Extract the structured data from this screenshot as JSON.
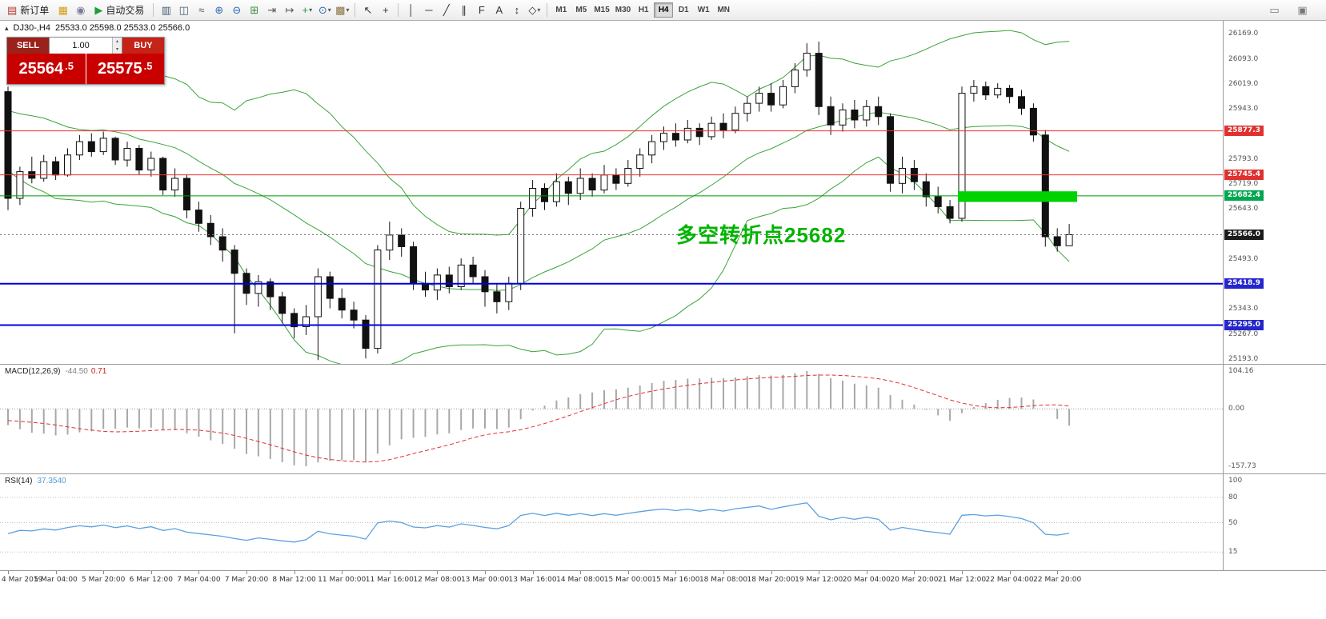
{
  "toolbar": {
    "items": [
      {
        "type": "button",
        "name": "new-order",
        "glyph": "▤",
        "color": "#b03a2e",
        "label": "新订单"
      },
      {
        "type": "icon",
        "name": "new-chart",
        "glyph": "▦",
        "color": "#d4a017"
      },
      {
        "type": "icon",
        "name": "chart-replay",
        "glyph": "◉",
        "color": "#7a7a9a"
      },
      {
        "type": "button",
        "name": "auto-trading",
        "glyph": "▶",
        "color": "#1e9e3e",
        "label": "自动交易"
      },
      {
        "type": "sep"
      },
      {
        "type": "icon",
        "name": "bar-chart-mode",
        "glyph": "▥",
        "color": "#445a6f"
      },
      {
        "type": "icon",
        "name": "candlestick-mode",
        "glyph": "◫",
        "color": "#445a6f"
      },
      {
        "type": "icon",
        "name": "line-chart-mode",
        "glyph": "≈",
        "color": "#445a6f"
      },
      {
        "type": "icon",
        "name": "zoom-in",
        "glyph": "⊕",
        "color": "#2e6db4"
      },
      {
        "type": "icon",
        "name": "zoom-out",
        "glyph": "⊖",
        "color": "#2e6db4"
      },
      {
        "type": "icon",
        "name": "tile-windows",
        "glyph": "⊞",
        "color": "#3a8f3a"
      },
      {
        "type": "icon",
        "name": "auto-scroll",
        "glyph": "⇥",
        "color": "#555555"
      },
      {
        "type": "icon",
        "name": "chart-shift",
        "glyph": "↦",
        "color": "#555555"
      },
      {
        "type": "icon",
        "name": "indicators",
        "glyph": "+",
        "color": "#1e9e3e",
        "dropdown": true
      },
      {
        "type": "icon",
        "name": "periods",
        "glyph": "⊙",
        "color": "#2e6db4",
        "dropdown": true
      },
      {
        "type": "icon",
        "name": "templates",
        "glyph": "▩",
        "color": "#8a7340",
        "dropdown": true
      },
      {
        "type": "sep"
      },
      {
        "type": "icon",
        "name": "cursor",
        "glyph": "↖",
        "color": "#333333"
      },
      {
        "type": "icon",
        "name": "crosshair",
        "glyph": "+",
        "color": "#333333"
      },
      {
        "type": "sep"
      },
      {
        "type": "icon",
        "name": "vertical-line-tool",
        "glyph": "│",
        "color": "#333333"
      },
      {
        "type": "icon",
        "name": "horizontal-line-tool",
        "glyph": "─",
        "color": "#333333"
      },
      {
        "type": "icon",
        "name": "trendline-tool",
        "glyph": "╱",
        "color": "#333333"
      },
      {
        "type": "icon",
        "name": "channel-tool",
        "glyph": "∥",
        "color": "#333333"
      },
      {
        "type": "icon",
        "name": "fibonacci-tool",
        "glyph": "F",
        "color": "#333333"
      },
      {
        "type": "icon",
        "name": "text-tool",
        "glyph": "A",
        "color": "#333333"
      },
      {
        "type": "icon",
        "name": "arrows-tool",
        "glyph": "↕",
        "color": "#333333"
      },
      {
        "type": "icon",
        "name": "shapes-tool",
        "glyph": "◇",
        "color": "#333333",
        "dropdown": true
      }
    ],
    "timeframes": [
      "M1",
      "M5",
      "M15",
      "M30",
      "H1",
      "H4",
      "D1",
      "W1",
      "MN"
    ],
    "active_timeframe": "H4",
    "right_items": [
      {
        "name": "chart-window",
        "glyph": "▭",
        "color": "#777777"
      },
      {
        "name": "quick-tools",
        "glyph": "▣",
        "color": "#777777"
      }
    ]
  },
  "chart": {
    "title": {
      "symbol_tf": "DJ30-,H4",
      "ohlc": "25533.0 25598.0 25533.0 25566.0"
    },
    "trade_panel": {
      "sell_label": "SELL",
      "buy_label": "BUY",
      "volume": "1.00",
      "sell_price": "25564",
      "sell_frac": ".5",
      "buy_price": "25575",
      "buy_frac": ".5"
    },
    "annotation": {
      "text": "多空转折点25682",
      "color": "#00b400"
    }
  },
  "chart_data": {
    "type": "candlestick",
    "symbol": "DJ30-",
    "timeframe": "H4",
    "last_ohlc": {
      "open": 25533.0,
      "high": 25598.0,
      "low": 25533.0,
      "close": 25566.0
    },
    "price_axis_labels": [
      "26169.0",
      "26093.0",
      "26019.0",
      "25943.0",
      "25867.0",
      "25793.0",
      "25719.0",
      "25643.0",
      "25567.0",
      "25493.0",
      "25417.0",
      "25343.0",
      "25267.0",
      "25193.0"
    ],
    "price_badges": [
      {
        "text": "25877.3",
        "price": 25877.3,
        "bg": "#e03131"
      },
      {
        "text": "25745.4",
        "price": 25745.4,
        "bg": "#e03131"
      },
      {
        "text": "25682.4",
        "price": 25682.4,
        "bg": "#00a651"
      },
      {
        "text": "25566.0",
        "price": 25566.0,
        "bg": "#1b1b1b"
      },
      {
        "text": "25418.9",
        "price": 25418.9,
        "bg": "#2525cc"
      },
      {
        "text": "25295.0",
        "price": 25295.0,
        "bg": "#2525cc"
      }
    ],
    "levels": [
      {
        "price": 25877.3,
        "color": "#f03030",
        "width": 1
      },
      {
        "price": 25745.4,
        "color": "#f03030",
        "width": 1
      },
      {
        "price": 25682.4,
        "color": "#009900",
        "width": 1
      },
      {
        "price": 25418.9,
        "color": "#0000e0",
        "width": 2
      },
      {
        "price": 25295.0,
        "color": "#0000e0",
        "width": 2
      }
    ],
    "current_price": 25566.0,
    "rect_highlight": {
      "from_index": 80,
      "to_index": 90,
      "price_top": 25696,
      "price_bottom": 25664,
      "color": "#00d200"
    },
    "time_labels": [
      "4 Mar 2019",
      "5 Mar 04:00",
      "5 Mar 20:00",
      "6 Mar 12:00",
      "7 Mar 04:00",
      "7 Mar 20:00",
      "8 Mar 12:00",
      "11 Mar 00:00",
      "11 Mar 16:00",
      "12 Mar 08:00",
      "13 Mar 00:00",
      "13 Mar 16:00",
      "14 Mar 08:00",
      "15 Mar 00:00",
      "15 Mar 16:00",
      "18 Mar 08:00",
      "18 Mar 20:00",
      "19 Mar 12:00",
      "20 Mar 04:00",
      "20 Mar 20:00",
      "21 Mar 12:00",
      "22 Mar 04:00",
      "22 Mar 20:00"
    ],
    "prehistory_closes": [
      26100,
      26040,
      25950,
      26020,
      26110,
      26050,
      25940,
      25860,
      25920,
      26010,
      26080,
      25990,
      25880,
      25820,
      25900,
      25980,
      26040,
      25950,
      25870,
      25930,
      25990,
      26060,
      25970,
      25900,
      25995
    ],
    "candles": [
      [
        25995,
        26010,
        25640,
        25675
      ],
      [
        25675,
        25770,
        25655,
        25755
      ],
      [
        25755,
        25800,
        25720,
        25735
      ],
      [
        25735,
        25805,
        25725,
        25785
      ],
      [
        25785,
        25800,
        25730,
        25745
      ],
      [
        25745,
        25825,
        25740,
        25805
      ],
      [
        25805,
        25865,
        25790,
        25845
      ],
      [
        25845,
        25870,
        25800,
        25815
      ],
      [
        25815,
        25875,
        25805,
        25855
      ],
      [
        25855,
        25860,
        25775,
        25790
      ],
      [
        25790,
        25845,
        25770,
        25825
      ],
      [
        25825,
        25835,
        25745,
        25760
      ],
      [
        25760,
        25815,
        25740,
        25795
      ],
      [
        25795,
        25800,
        25685,
        25700
      ],
      [
        25700,
        25765,
        25680,
        25735
      ],
      [
        25735,
        25745,
        25615,
        25640
      ],
      [
        25640,
        25665,
        25575,
        25600
      ],
      [
        25600,
        25625,
        25535,
        25560
      ],
      [
        25560,
        25585,
        25485,
        25520
      ],
      [
        25520,
        25535,
        25270,
        25450
      ],
      [
        25450,
        25465,
        25355,
        25390
      ],
      [
        25390,
        25445,
        25350,
        25425
      ],
      [
        25425,
        25435,
        25340,
        25380
      ],
      [
        25380,
        25395,
        25300,
        25330
      ],
      [
        25330,
        25345,
        25255,
        25290
      ],
      [
        25290,
        25355,
        25265,
        25320
      ],
      [
        25320,
        25465,
        25190,
        25440
      ],
      [
        25440,
        25455,
        25345,
        25375
      ],
      [
        25375,
        25405,
        25315,
        25340
      ],
      [
        25340,
        25365,
        25285,
        25310
      ],
      [
        25310,
        25325,
        25195,
        25225
      ],
      [
        25225,
        25535,
        25210,
        25520
      ],
      [
        25520,
        25605,
        25490,
        25565
      ],
      [
        25565,
        25585,
        25500,
        25530
      ],
      [
        25530,
        25545,
        25400,
        25420
      ],
      [
        25420,
        25455,
        25380,
        25400
      ],
      [
        25400,
        25465,
        25370,
        25445
      ],
      [
        25445,
        25470,
        25390,
        25410
      ],
      [
        25410,
        25495,
        25400,
        25475
      ],
      [
        25475,
        25500,
        25420,
        25440
      ],
      [
        25440,
        25460,
        25350,
        25395
      ],
      [
        25395,
        25420,
        25330,
        25365
      ],
      [
        25365,
        25440,
        25340,
        25420
      ],
      [
        25420,
        25665,
        25400,
        25645
      ],
      [
        25645,
        25730,
        25620,
        25705
      ],
      [
        25705,
        25720,
        25640,
        25665
      ],
      [
        25665,
        25750,
        25650,
        25725
      ],
      [
        25725,
        25740,
        25655,
        25690
      ],
      [
        25690,
        25765,
        25670,
        25735
      ],
      [
        25735,
        25750,
        25680,
        25700
      ],
      [
        25700,
        25775,
        25690,
        25745
      ],
      [
        25745,
        25765,
        25700,
        25720
      ],
      [
        25720,
        25790,
        25710,
        25765
      ],
      [
        25765,
        25825,
        25740,
        25805
      ],
      [
        25805,
        25865,
        25780,
        25845
      ],
      [
        25845,
        25890,
        25820,
        25870
      ],
      [
        25870,
        25900,
        25830,
        25850
      ],
      [
        25850,
        25910,
        25840,
        25885
      ],
      [
        25885,
        25900,
        25835,
        25860
      ],
      [
        25860,
        25920,
        25850,
        25900
      ],
      [
        25900,
        25930,
        25855,
        25880
      ],
      [
        25880,
        25950,
        25870,
        25930
      ],
      [
        25930,
        25980,
        25905,
        25960
      ],
      [
        25960,
        26010,
        25935,
        25990
      ],
      [
        25990,
        26020,
        25935,
        25955
      ],
      [
        25955,
        26030,
        25945,
        26010
      ],
      [
        26010,
        26080,
        25990,
        26060
      ],
      [
        26060,
        26140,
        26040,
        26110
      ],
      [
        26110,
        26145,
        25925,
        25950
      ],
      [
        25950,
        25980,
        25865,
        25895
      ],
      [
        25895,
        25960,
        25875,
        25940
      ],
      [
        25940,
        25970,
        25885,
        25910
      ],
      [
        25910,
        25970,
        25890,
        25950
      ],
      [
        25950,
        25980,
        25895,
        25920
      ],
      [
        25920,
        25930,
        25695,
        25720
      ],
      [
        25720,
        25800,
        25690,
        25765
      ],
      [
        25765,
        25790,
        25700,
        25725
      ],
      [
        25725,
        25750,
        25650,
        25680
      ],
      [
        25680,
        25710,
        25630,
        25650
      ],
      [
        25650,
        25670,
        25600,
        25615
      ],
      [
        25615,
        26010,
        25605,
        25990
      ],
      [
        25990,
        26030,
        25965,
        26010
      ],
      [
        26010,
        26025,
        25970,
        25985
      ],
      [
        25985,
        26020,
        25975,
        26005
      ],
      [
        26005,
        26015,
        25960,
        25980
      ],
      [
        25980,
        26000,
        25925,
        25945
      ],
      [
        25945,
        25960,
        25845,
        25865
      ],
      [
        25865,
        25880,
        25530,
        25560
      ],
      [
        25560,
        25585,
        25515,
        25533
      ],
      [
        25533,
        25598,
        25533,
        25566
      ]
    ],
    "bollinger": {
      "period": 20,
      "deviation": 2,
      "color": "#3aa33a"
    },
    "macd": {
      "label": "MACD(12,26,9)",
      "value": "-44.50",
      "signal_value": "0.71",
      "axis_labels": [
        {
          "text": "104.16",
          "value": 104.16
        },
        {
          "text": "0.00",
          "value": 0
        },
        {
          "text": "-157.73",
          "value": -157.73
        }
      ],
      "histogram_color": "#a8a8a8",
      "signal_color": "#e03131"
    },
    "rsi": {
      "label": "RSI(14)",
      "value": "37.3540",
      "axis_labels": [
        {
          "text": "100",
          "value": 100
        },
        {
          "text": "80",
          "value": 80
        },
        {
          "text": "50",
          "value": 50
        },
        {
          "text": "15",
          "value": 15
        }
      ],
      "levels": [
        80,
        50,
        15
      ],
      "line_color": "#5ba0e0"
    }
  }
}
